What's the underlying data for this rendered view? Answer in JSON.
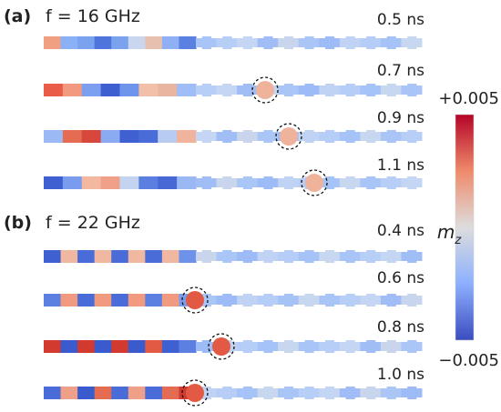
{
  "panels": [
    {
      "label": "(a)",
      "frequency": "f = 16 GHz",
      "snapshots": [
        {
          "time": "0.5 ns",
          "marker": false
        },
        {
          "time": "0.7 ns",
          "marker": true
        },
        {
          "time": "0.9 ns",
          "marker": true
        },
        {
          "time": "1.1 ns",
          "marker": true
        }
      ]
    },
    {
      "label": "(b)",
      "frequency": "f = 22 GHz",
      "snapshots": [
        {
          "time": "0.4 ns",
          "marker": false
        },
        {
          "time": "0.6 ns",
          "marker": true
        },
        {
          "time": "0.8 ns",
          "marker": true
        },
        {
          "time": "1.0 ns",
          "marker": true
        }
      ]
    }
  ],
  "colorbar": {
    "max_label": "+0.005",
    "min_label": "−0.005",
    "quantity_label": "m",
    "quantity_subscript": "z",
    "colors": {
      "high": "#b40426",
      "mid": "#dddddd",
      "low": "#3b4cc0"
    }
  }
}
